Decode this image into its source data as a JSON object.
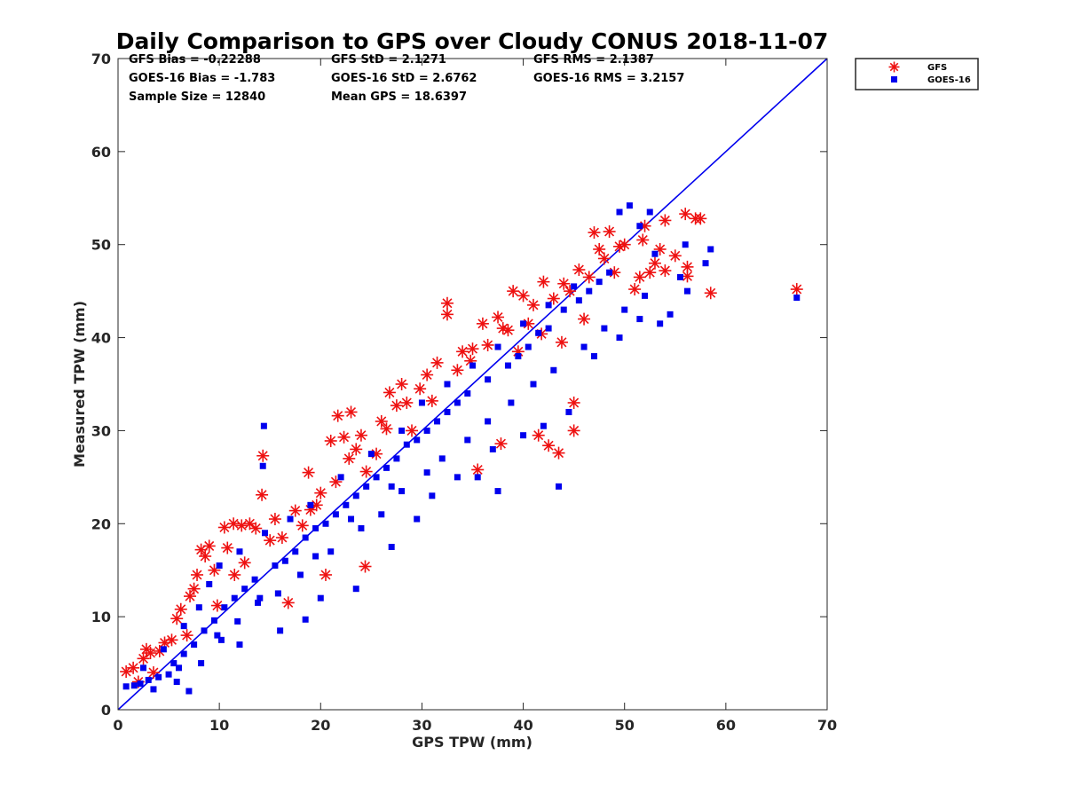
{
  "chart_data": {
    "type": "scatter",
    "title": "Daily Comparison to GPS over Cloudy CONUS 2018-11-07",
    "xlabel": "GPS TPW (mm)",
    "ylabel": "Measured TPW (mm)",
    "xlim": [
      0,
      70
    ],
    "ylim": [
      0,
      70
    ],
    "x_ticks": [
      "0",
      "10",
      "20",
      "30",
      "40",
      "50",
      "60",
      "70"
    ],
    "y_ticks": [
      "0",
      "10",
      "20",
      "30",
      "40",
      "50",
      "60",
      "70"
    ],
    "grid": false,
    "legend_position": "outside top-right",
    "reference_line": {
      "x": [
        0,
        70
      ],
      "y": [
        0,
        70
      ],
      "color": "#0000ee"
    },
    "stats": {
      "gfs_bias": "GFS Bias = -0.22288",
      "gfs_std": "GFS StD = 2.1271",
      "gfs_rms": "GFS RMS = 2.1387",
      "goes_bias": "GOES-16 Bias = -1.783",
      "goes_std": "GOES-16 StD = 2.6762",
      "goes_rms": "GOES-16 RMS = 3.2157",
      "sample_size": "Sample Size = 12840",
      "mean_gps": "Mean GPS = 18.6397"
    },
    "series": [
      {
        "name": "GFS",
        "marker": "asterisk",
        "color": "#ee1111",
        "points": [
          [
            0.8,
            4.1
          ],
          [
            1.5,
            4.5
          ],
          [
            2.5,
            5.5
          ],
          [
            3.2,
            6.1
          ],
          [
            4.1,
            6.3
          ],
          [
            5.3,
            7.5
          ],
          [
            5.8,
            9.8
          ],
          [
            6.2,
            10.8
          ],
          [
            7.1,
            12.2
          ],
          [
            7.8,
            14.5
          ],
          [
            8.2,
            17.2
          ],
          [
            9.0,
            17.6
          ],
          [
            9.5,
            15.0
          ],
          [
            10.5,
            19.6
          ],
          [
            11.4,
            20.0
          ],
          [
            12.2,
            19.8
          ],
          [
            13.0,
            20.0
          ],
          [
            14.3,
            27.3
          ],
          [
            14.2,
            23.1
          ],
          [
            15.5,
            20.5
          ],
          [
            16.8,
            11.5
          ],
          [
            18.2,
            19.8
          ],
          [
            18.8,
            25.5
          ],
          [
            19.6,
            22.0
          ],
          [
            20.5,
            14.5
          ],
          [
            21.0,
            28.9
          ],
          [
            21.7,
            31.6
          ],
          [
            22.3,
            29.3
          ],
          [
            23.0,
            32.0
          ],
          [
            23.5,
            28.0
          ],
          [
            24.0,
            29.5
          ],
          [
            24.4,
            15.4
          ],
          [
            24.5,
            25.6
          ],
          [
            26.0,
            31.0
          ],
          [
            26.8,
            34.1
          ],
          [
            27.5,
            32.7
          ],
          [
            28.0,
            35.0
          ],
          [
            29.0,
            30.0
          ],
          [
            30.5,
            36.0
          ],
          [
            31.5,
            37.3
          ],
          [
            32.5,
            43.7
          ],
          [
            32.5,
            42.5
          ],
          [
            34.0,
            38.5
          ],
          [
            35.0,
            38.8
          ],
          [
            35.5,
            25.8
          ],
          [
            36.5,
            39.2
          ],
          [
            37.5,
            42.2
          ],
          [
            37.8,
            28.6
          ],
          [
            38.5,
            40.8
          ],
          [
            39.5,
            38.5
          ],
          [
            40.0,
            44.5
          ],
          [
            40.5,
            41.5
          ],
          [
            41.0,
            43.5
          ],
          [
            41.5,
            29.5
          ],
          [
            42.0,
            46.0
          ],
          [
            42.5,
            28.4
          ],
          [
            43.0,
            44.2
          ],
          [
            43.5,
            27.6
          ],
          [
            44.0,
            45.8
          ],
          [
            45.0,
            33.0
          ],
          [
            45.0,
            30.0
          ],
          [
            45.5,
            47.3
          ],
          [
            46.0,
            42.0
          ],
          [
            46.5,
            46.5
          ],
          [
            47.0,
            51.3
          ],
          [
            48.0,
            48.5
          ],
          [
            48.5,
            51.4
          ],
          [
            49.0,
            47.0
          ],
          [
            50.0,
            50.0
          ],
          [
            51.0,
            45.2
          ],
          [
            51.5,
            46.5
          ],
          [
            52.0,
            52.0
          ],
          [
            52.5,
            47.0
          ],
          [
            53.0,
            48.0
          ],
          [
            53.5,
            49.5
          ],
          [
            54.0,
            52.6
          ],
          [
            54.0,
            47.2
          ],
          [
            56.0,
            53.3
          ],
          [
            56.2,
            47.6
          ],
          [
            56.2,
            46.6
          ],
          [
            57.0,
            52.8
          ],
          [
            57.5,
            52.8
          ],
          [
            58.5,
            44.8
          ],
          [
            67.0,
            45.2
          ],
          [
            2.0,
            3.0
          ],
          [
            3.5,
            4.0
          ],
          [
            6.8,
            8.0
          ],
          [
            9.8,
            11.2
          ],
          [
            11.5,
            14.5
          ],
          [
            12.5,
            15.8
          ],
          [
            16.2,
            18.5
          ],
          [
            19.0,
            21.5
          ],
          [
            21.5,
            24.5
          ],
          [
            25.5,
            27.5
          ],
          [
            28.5,
            33.0
          ],
          [
            33.5,
            36.5
          ],
          [
            36.0,
            41.5
          ],
          [
            39.0,
            45.0
          ],
          [
            43.8,
            39.5
          ],
          [
            47.5,
            49.5
          ],
          [
            2.8,
            6.5
          ],
          [
            4.6,
            7.2
          ],
          [
            7.5,
            13.0
          ],
          [
            8.6,
            16.5
          ],
          [
            10.8,
            17.4
          ],
          [
            13.6,
            19.5
          ],
          [
            15.0,
            18.2
          ],
          [
            17.5,
            21.4
          ],
          [
            20.0,
            23.3
          ],
          [
            22.8,
            27.0
          ],
          [
            26.5,
            30.2
          ],
          [
            29.8,
            34.5
          ],
          [
            31.0,
            33.2
          ],
          [
            34.8,
            37.5
          ],
          [
            38.0,
            41.0
          ],
          [
            41.8,
            40.4
          ],
          [
            44.6,
            45.0
          ],
          [
            49.5,
            49.8
          ],
          [
            51.8,
            50.5
          ],
          [
            55.0,
            48.8
          ]
        ]
      },
      {
        "name": "GOES-16",
        "marker": "square",
        "color": "#0000ee",
        "points": [
          [
            0.8,
            2.5
          ],
          [
            1.6,
            2.6
          ],
          [
            2.2,
            2.8
          ],
          [
            3.0,
            3.2
          ],
          [
            4.0,
            3.5
          ],
          [
            5.0,
            3.8
          ],
          [
            5.5,
            5.0
          ],
          [
            6.5,
            6.0
          ],
          [
            7.5,
            7.0
          ],
          [
            8.5,
            8.5
          ],
          [
            9.5,
            9.6
          ],
          [
            10.5,
            11.0
          ],
          [
            11.5,
            12.0
          ],
          [
            12.5,
            13.0
          ],
          [
            13.5,
            14.0
          ],
          [
            14.4,
            30.5
          ],
          [
            14.3,
            26.2
          ],
          [
            15.5,
            15.5
          ],
          [
            16.5,
            16.0
          ],
          [
            17.5,
            17.0
          ],
          [
            18.5,
            18.5
          ],
          [
            19.5,
            19.5
          ],
          [
            20.5,
            20.0
          ],
          [
            21.5,
            21.0
          ],
          [
            22.5,
            22.0
          ],
          [
            23.5,
            23.0
          ],
          [
            24.5,
            24.0
          ],
          [
            25.5,
            25.0
          ],
          [
            26.5,
            26.0
          ],
          [
            27.5,
            27.0
          ],
          [
            28.5,
            28.5
          ],
          [
            29.5,
            29.0
          ],
          [
            30.5,
            30.0
          ],
          [
            31.5,
            31.0
          ],
          [
            32.5,
            32.0
          ],
          [
            33.5,
            33.0
          ],
          [
            34.5,
            34.0
          ],
          [
            35.5,
            25.0
          ],
          [
            36.5,
            35.5
          ],
          [
            37.5,
            23.5
          ],
          [
            38.5,
            37.0
          ],
          [
            39.5,
            38.0
          ],
          [
            40.5,
            39.0
          ],
          [
            41.5,
            40.5
          ],
          [
            42.5,
            41.0
          ],
          [
            43.5,
            24.0
          ],
          [
            44.0,
            43.0
          ],
          [
            45.5,
            44.0
          ],
          [
            46.5,
            45.0
          ],
          [
            47.5,
            46.0
          ],
          [
            48.5,
            47.0
          ],
          [
            49.5,
            53.5
          ],
          [
            50.5,
            54.2
          ],
          [
            51.5,
            52.0
          ],
          [
            52.5,
            53.5
          ],
          [
            53.0,
            49.0
          ],
          [
            54.5,
            42.5
          ],
          [
            56.0,
            50.0
          ],
          [
            56.2,
            45.0
          ],
          [
            58.0,
            48.0
          ],
          [
            58.5,
            49.5
          ],
          [
            67.0,
            44.3
          ],
          [
            18.5,
            9.7
          ],
          [
            7.0,
            2.0
          ],
          [
            12.0,
            7.0
          ],
          [
            16.0,
            8.5
          ],
          [
            20.0,
            12.0
          ],
          [
            23.5,
            13.0
          ],
          [
            27.0,
            17.5
          ],
          [
            29.5,
            20.5
          ],
          [
            31.0,
            23.0
          ],
          [
            33.5,
            25.0
          ],
          [
            37.0,
            28.0
          ],
          [
            40.0,
            29.5
          ],
          [
            42.0,
            30.5
          ],
          [
            44.5,
            32.0
          ],
          [
            47.0,
            38.0
          ],
          [
            49.5,
            40.0
          ],
          [
            51.5,
            42.0
          ],
          [
            53.5,
            41.5
          ],
          [
            2.5,
            4.5
          ],
          [
            4.5,
            6.5
          ],
          [
            6.5,
            9.0
          ],
          [
            8.0,
            11.0
          ],
          [
            9.0,
            13.5
          ],
          [
            10.0,
            15.5
          ],
          [
            12.0,
            17.0
          ],
          [
            14.5,
            19.0
          ],
          [
            17.0,
            20.5
          ],
          [
            19.0,
            22.0
          ],
          [
            22.0,
            25.0
          ],
          [
            25.0,
            27.5
          ],
          [
            28.0,
            30.0
          ],
          [
            30.0,
            33.0
          ],
          [
            32.5,
            35.0
          ],
          [
            35.0,
            37.0
          ],
          [
            37.5,
            39.0
          ],
          [
            40.0,
            41.5
          ],
          [
            42.5,
            43.5
          ],
          [
            45.0,
            45.5
          ],
          [
            3.5,
            2.2
          ],
          [
            5.8,
            3.0
          ],
          [
            8.2,
            5.0
          ],
          [
            10.2,
            7.5
          ],
          [
            11.8,
            9.5
          ],
          [
            13.8,
            11.5
          ],
          [
            15.8,
            12.5
          ],
          [
            18.0,
            14.5
          ],
          [
            21.0,
            17.0
          ],
          [
            24.0,
            19.5
          ],
          [
            26.0,
            21.0
          ],
          [
            28.0,
            23.5
          ],
          [
            30.5,
            25.5
          ],
          [
            32.0,
            27.0
          ],
          [
            34.5,
            29.0
          ],
          [
            36.5,
            31.0
          ],
          [
            38.8,
            33.0
          ],
          [
            41.0,
            35.0
          ],
          [
            43.0,
            36.5
          ],
          [
            46.0,
            39.0
          ],
          [
            48.0,
            41.0
          ],
          [
            50.0,
            43.0
          ],
          [
            52.0,
            44.5
          ],
          [
            55.5,
            46.5
          ],
          [
            6.0,
            4.5
          ],
          [
            9.8,
            8.0
          ],
          [
            14.0,
            12.0
          ],
          [
            19.5,
            16.5
          ],
          [
            23.0,
            20.5
          ],
          [
            27.0,
            24.0
          ]
        ]
      }
    ]
  }
}
